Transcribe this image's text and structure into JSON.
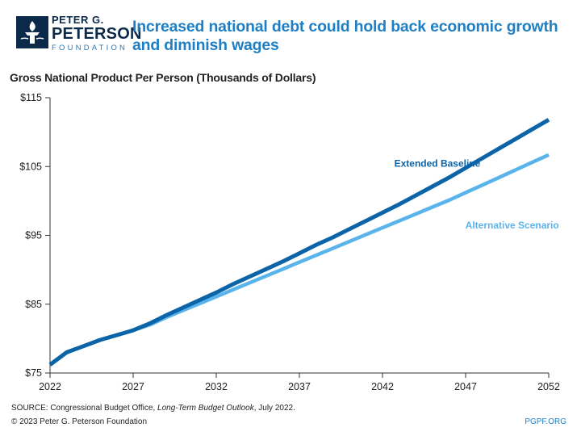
{
  "header": {
    "logo_line1": "PETER G.",
    "logo_line2": "PETERSON",
    "logo_line3": "FOUNDATION",
    "title": "Increased national debt could hold back economic growth and diminish wages"
  },
  "colors": {
    "title": "#1f7fc4",
    "extended_baseline": "#0b63a8",
    "alternative_scenario": "#5ab4ec",
    "axis": "#333333"
  },
  "chart_data": {
    "type": "line",
    "title": "Gross National Product Per Person (Thousands of Dollars)",
    "xlabel": "",
    "ylabel": "",
    "xlim": [
      2022,
      2052
    ],
    "ylim": [
      75,
      115
    ],
    "x_ticks": [
      2022,
      2027,
      2032,
      2037,
      2042,
      2047,
      2052
    ],
    "y_ticks": [
      75,
      85,
      95,
      105,
      115
    ],
    "y_tick_labels": [
      "$75",
      "$85",
      "$95",
      "$105",
      "$115"
    ],
    "grid": false,
    "x": [
      2022,
      2023,
      2024,
      2025,
      2026,
      2027,
      2028,
      2029,
      2030,
      2031,
      2032,
      2033,
      2034,
      2035,
      2036,
      2037,
      2038,
      2039,
      2040,
      2041,
      2042,
      2043,
      2044,
      2045,
      2046,
      2047,
      2048,
      2049,
      2050,
      2051,
      2052
    ],
    "series": [
      {
        "name": "Extended Baseline",
        "values": [
          76.2,
          78.0,
          78.9,
          79.8,
          80.5,
          81.2,
          82.2,
          83.4,
          84.5,
          85.6,
          86.7,
          87.9,
          89.0,
          90.1,
          91.2,
          92.4,
          93.6,
          94.7,
          95.9,
          97.1,
          98.3,
          99.5,
          100.8,
          102.1,
          103.4,
          104.8,
          106.2,
          107.6,
          109.0,
          110.4,
          111.8
        ]
      },
      {
        "name": "Alternative Scenario",
        "values": [
          76.2,
          78.0,
          78.9,
          79.8,
          80.5,
          81.2,
          82.0,
          83.1,
          84.1,
          85.1,
          86.1,
          87.1,
          88.1,
          89.1,
          90.1,
          91.1,
          92.1,
          93.1,
          94.1,
          95.1,
          96.1,
          97.1,
          98.1,
          99.1,
          100.1,
          101.2,
          102.3,
          103.4,
          104.5,
          105.6,
          106.7
        ]
      }
    ],
    "annotations": [
      {
        "text": "Extended Baseline",
        "x": 2045.3,
        "y": 105
      },
      {
        "text": "Alternative Scenario",
        "x": 2049.8,
        "y": 96
      }
    ]
  },
  "footer": {
    "source_prefix": "SOURCE: Congressional Budget Office, ",
    "source_title": "Long-Term Budget Outlook",
    "source_suffix": ", July 2022.",
    "copyright": "© 2023 Peter G. Peterson Foundation",
    "url": "PGPF.ORG"
  }
}
